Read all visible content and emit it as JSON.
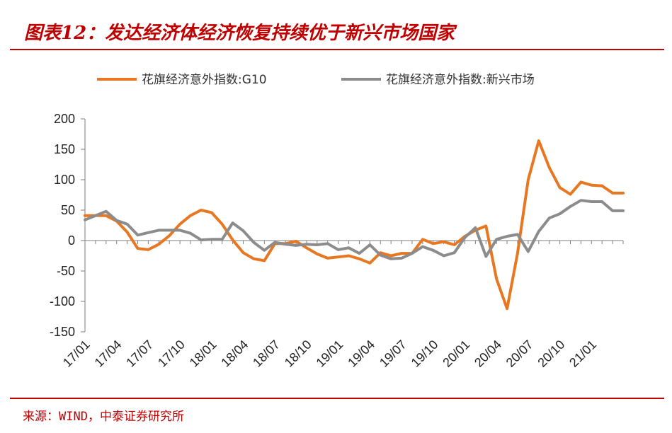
{
  "header": {
    "title": "图表12：发达经济体经济恢复持续优于新兴市场国家"
  },
  "footer": {
    "source": "来源：WIND，中泰证券研究所"
  },
  "colors": {
    "accent": "#c00000",
    "series_g10": "#e87722",
    "series_em": "#8c8c8c"
  },
  "chart_data": {
    "type": "line",
    "title": "",
    "xlabel": "",
    "ylabel": "",
    "ylim": [
      -150,
      200
    ],
    "yticks": [
      200,
      150,
      100,
      50,
      0,
      -50,
      -100,
      -150
    ],
    "x_tick_labels": [
      "17/01",
      "17/04",
      "17/07",
      "17/10",
      "18/01",
      "18/04",
      "18/07",
      "18/10",
      "19/01",
      "19/04",
      "19/07",
      "19/10",
      "20/01",
      "20/04",
      "20/07",
      "20/10",
      "21/01"
    ],
    "legend_position": "top",
    "grid": false,
    "x": [
      "17/01",
      "17/02",
      "17/03",
      "17/04",
      "17/05",
      "17/06",
      "17/07",
      "17/08",
      "17/09",
      "17/10",
      "17/11",
      "17/12",
      "18/01",
      "18/02",
      "18/03",
      "18/04",
      "18/05",
      "18/06",
      "18/07",
      "18/08",
      "18/09",
      "18/10",
      "18/11",
      "18/12",
      "19/01",
      "19/02",
      "19/03",
      "19/04",
      "19/05",
      "19/06",
      "19/07",
      "19/08",
      "19/09",
      "19/10",
      "19/11",
      "19/12",
      "20/01",
      "20/02",
      "20/03",
      "20/04",
      "20/05",
      "20/06",
      "20/07",
      "20/08",
      "20/09",
      "20/10",
      "20/11",
      "20/12",
      "21/01",
      "21/02",
      "21/03",
      "21/04"
    ],
    "series": [
      {
        "name": "花旗经济意外指数:G10",
        "values": [
          41,
          41,
          41,
          32,
          14,
          -13,
          -15,
          -6,
          8,
          27,
          41,
          50,
          46,
          27,
          1,
          -20,
          -30,
          -33,
          -5,
          -5,
          -1,
          -12,
          -22,
          -29,
          -27,
          -25,
          -30,
          -37,
          -20,
          -25,
          -21,
          -21,
          2,
          -5,
          -2,
          -7,
          7,
          17,
          24,
          -63,
          -112,
          -20,
          100,
          164,
          120,
          87,
          76,
          96,
          91,
          90,
          78,
          78
        ]
      },
      {
        "name": "花旗经济意外指数:新兴市场",
        "values": [
          34,
          41,
          48,
          33,
          27,
          9,
          13,
          17,
          17,
          17,
          12,
          1,
          2,
          2,
          29,
          16,
          -3,
          -16,
          -3,
          -6,
          -8,
          -6,
          -7,
          -5,
          -15,
          -12,
          -21,
          -7,
          -24,
          -30,
          -29,
          -21,
          -10,
          -16,
          -25,
          -20,
          5,
          21,
          -26,
          2,
          7,
          10,
          -18,
          15,
          37,
          44,
          56,
          66,
          64,
          64,
          49,
          49
        ]
      }
    ]
  }
}
